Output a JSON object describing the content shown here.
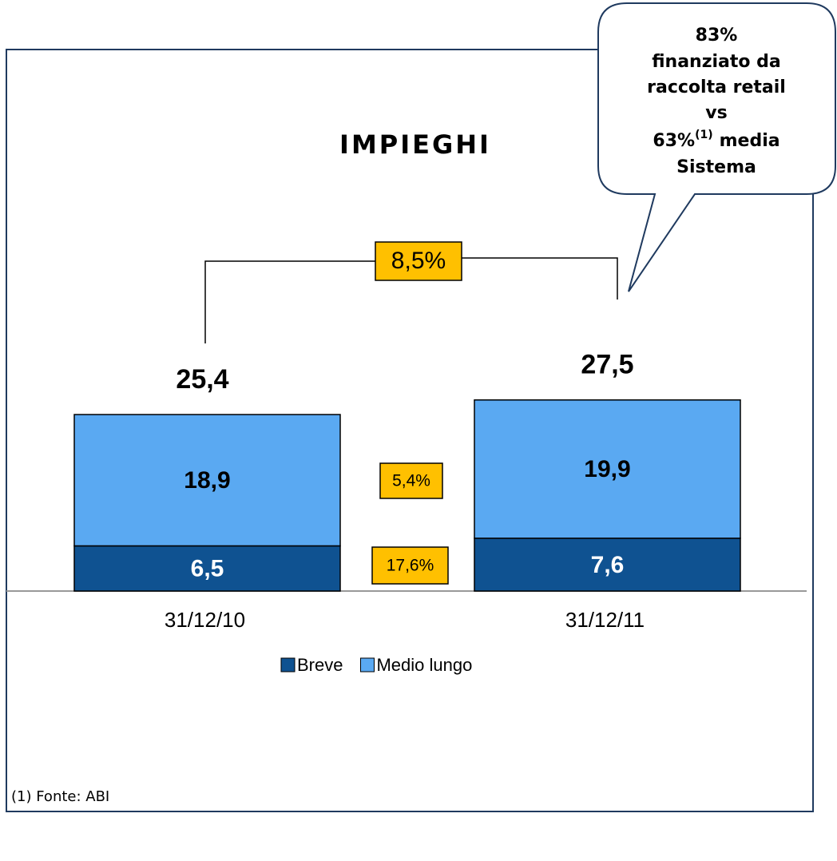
{
  "chart_data": {
    "type": "bar",
    "stacked": true,
    "title": "IMPIEGHI",
    "categories": [
      "31/12/10",
      "31/12/11"
    ],
    "series": [
      {
        "name": "Breve",
        "color": "#0f5291",
        "values": [
          6.5,
          7.6
        ],
        "value_labels": [
          "6,5",
          "7,6"
        ]
      },
      {
        "name": "Medio lungo",
        "color": "#5aa9f2",
        "values": [
          18.9,
          19.9
        ],
        "value_labels": [
          "18,9",
          "19,9"
        ]
      }
    ],
    "totals": [
      25.4,
      27.5
    ],
    "total_labels": [
      "25,4",
      "27,5"
    ],
    "annotations": [
      {
        "value": 8.5,
        "label": "8,5%"
      },
      {
        "value": 5.4,
        "label": "5,4%"
      },
      {
        "value": 17.6,
        "label": "17,6%"
      }
    ],
    "callout": {
      "lines": [
        "83%",
        "finanziato da",
        "raccolta retail",
        "vs"
      ],
      "ref_value": "63%",
      "ref_note": "(1)",
      "ref_rest": "media",
      "last": "Sistema"
    },
    "footnote": "(1) Fonte: ABI"
  }
}
